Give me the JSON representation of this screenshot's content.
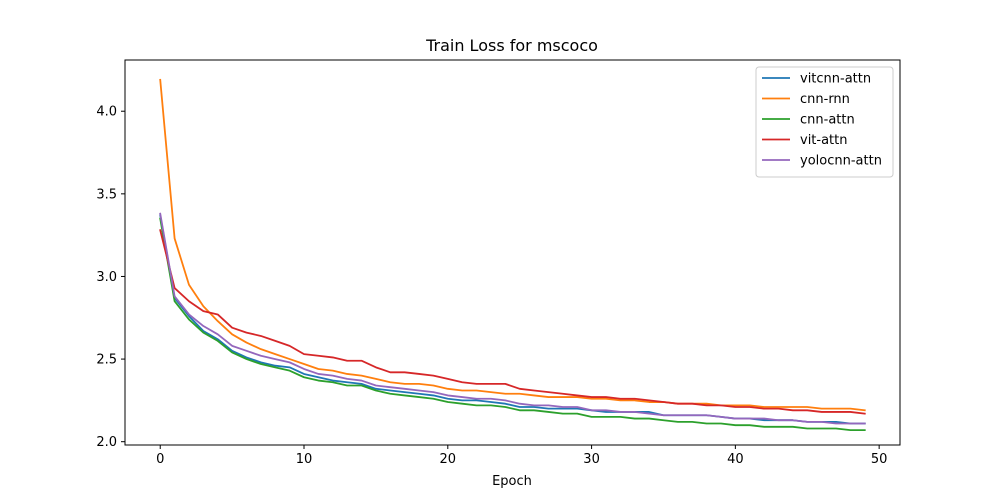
{
  "chart_data": {
    "type": "line",
    "title": "Train Loss for mscoco",
    "xlabel": "Epoch",
    "ylabel": "",
    "xlim": [
      -2.45,
      51.45
    ],
    "ylim": [
      1.98,
      4.31
    ],
    "xticks": [
      0,
      10,
      20,
      30,
      40,
      50
    ],
    "yticks": [
      2.0,
      2.5,
      3.0,
      3.5,
      4.0
    ],
    "xtick_labels": [
      "0",
      "10",
      "20",
      "30",
      "40",
      "50"
    ],
    "ytick_labels": [
      "2.0",
      "2.5",
      "3.0",
      "3.5",
      "4.0"
    ],
    "grid": false,
    "legend_position": "top-right",
    "x": [
      0,
      1,
      2,
      3,
      4,
      5,
      6,
      7,
      8,
      9,
      10,
      11,
      12,
      13,
      14,
      15,
      16,
      17,
      18,
      19,
      20,
      21,
      22,
      23,
      24,
      25,
      26,
      27,
      28,
      29,
      30,
      31,
      32,
      33,
      34,
      35,
      36,
      37,
      38,
      39,
      40,
      41,
      42,
      43,
      44,
      45,
      46,
      47,
      48,
      49
    ],
    "series": [
      {
        "name": "vitcnn-attn",
        "color": "#1f77b4",
        "values": [
          3.37,
          2.87,
          2.76,
          2.67,
          2.62,
          2.55,
          2.51,
          2.48,
          2.46,
          2.45,
          2.41,
          2.39,
          2.37,
          2.36,
          2.35,
          2.32,
          2.31,
          2.3,
          2.29,
          2.28,
          2.26,
          2.25,
          2.25,
          2.24,
          2.23,
          2.21,
          2.21,
          2.2,
          2.2,
          2.2,
          2.19,
          2.18,
          2.18,
          2.18,
          2.18,
          2.16,
          2.16,
          2.16,
          2.16,
          2.15,
          2.14,
          2.14,
          2.13,
          2.13,
          2.13,
          2.12,
          2.12,
          2.12,
          2.11,
          2.11
        ]
      },
      {
        "name": "cnn-rnn",
        "color": "#ff7f0e",
        "values": [
          4.19,
          3.23,
          2.95,
          2.82,
          2.73,
          2.65,
          2.6,
          2.56,
          2.53,
          2.5,
          2.47,
          2.44,
          2.43,
          2.41,
          2.4,
          2.38,
          2.36,
          2.35,
          2.35,
          2.34,
          2.32,
          2.31,
          2.31,
          2.3,
          2.29,
          2.29,
          2.28,
          2.27,
          2.27,
          2.27,
          2.26,
          2.26,
          2.25,
          2.25,
          2.24,
          2.24,
          2.23,
          2.23,
          2.23,
          2.22,
          2.22,
          2.22,
          2.21,
          2.21,
          2.21,
          2.21,
          2.2,
          2.2,
          2.2,
          2.19
        ]
      },
      {
        "name": "cnn-attn",
        "color": "#2ca02c",
        "values": [
          3.35,
          2.85,
          2.74,
          2.66,
          2.61,
          2.54,
          2.5,
          2.47,
          2.45,
          2.43,
          2.39,
          2.37,
          2.36,
          2.34,
          2.34,
          2.31,
          2.29,
          2.28,
          2.27,
          2.26,
          2.24,
          2.23,
          2.22,
          2.22,
          2.21,
          2.19,
          2.19,
          2.18,
          2.17,
          2.17,
          2.15,
          2.15,
          2.15,
          2.14,
          2.14,
          2.13,
          2.12,
          2.12,
          2.11,
          2.11,
          2.1,
          2.1,
          2.09,
          2.09,
          2.09,
          2.08,
          2.08,
          2.08,
          2.07,
          2.07
        ]
      },
      {
        "name": "vit-attn",
        "color": "#d62728",
        "values": [
          3.28,
          2.93,
          2.85,
          2.79,
          2.77,
          2.69,
          2.66,
          2.64,
          2.61,
          2.58,
          2.53,
          2.52,
          2.51,
          2.49,
          2.49,
          2.45,
          2.42,
          2.42,
          2.41,
          2.4,
          2.38,
          2.36,
          2.35,
          2.35,
          2.35,
          2.32,
          2.31,
          2.3,
          2.29,
          2.28,
          2.27,
          2.27,
          2.26,
          2.26,
          2.25,
          2.24,
          2.23,
          2.23,
          2.22,
          2.22,
          2.21,
          2.21,
          2.2,
          2.2,
          2.19,
          2.19,
          2.18,
          2.18,
          2.18,
          2.17
        ]
      },
      {
        "name": "yolocnn-attn",
        "color": "#9467bd",
        "values": [
          3.38,
          2.88,
          2.77,
          2.7,
          2.65,
          2.58,
          2.55,
          2.52,
          2.5,
          2.48,
          2.44,
          2.41,
          2.4,
          2.38,
          2.37,
          2.34,
          2.33,
          2.32,
          2.31,
          2.3,
          2.28,
          2.27,
          2.26,
          2.26,
          2.25,
          2.23,
          2.22,
          2.22,
          2.21,
          2.21,
          2.19,
          2.19,
          2.18,
          2.18,
          2.17,
          2.16,
          2.16,
          2.16,
          2.16,
          2.15,
          2.14,
          2.14,
          2.14,
          2.13,
          2.13,
          2.12,
          2.12,
          2.11,
          2.11,
          2.11
        ]
      }
    ]
  }
}
